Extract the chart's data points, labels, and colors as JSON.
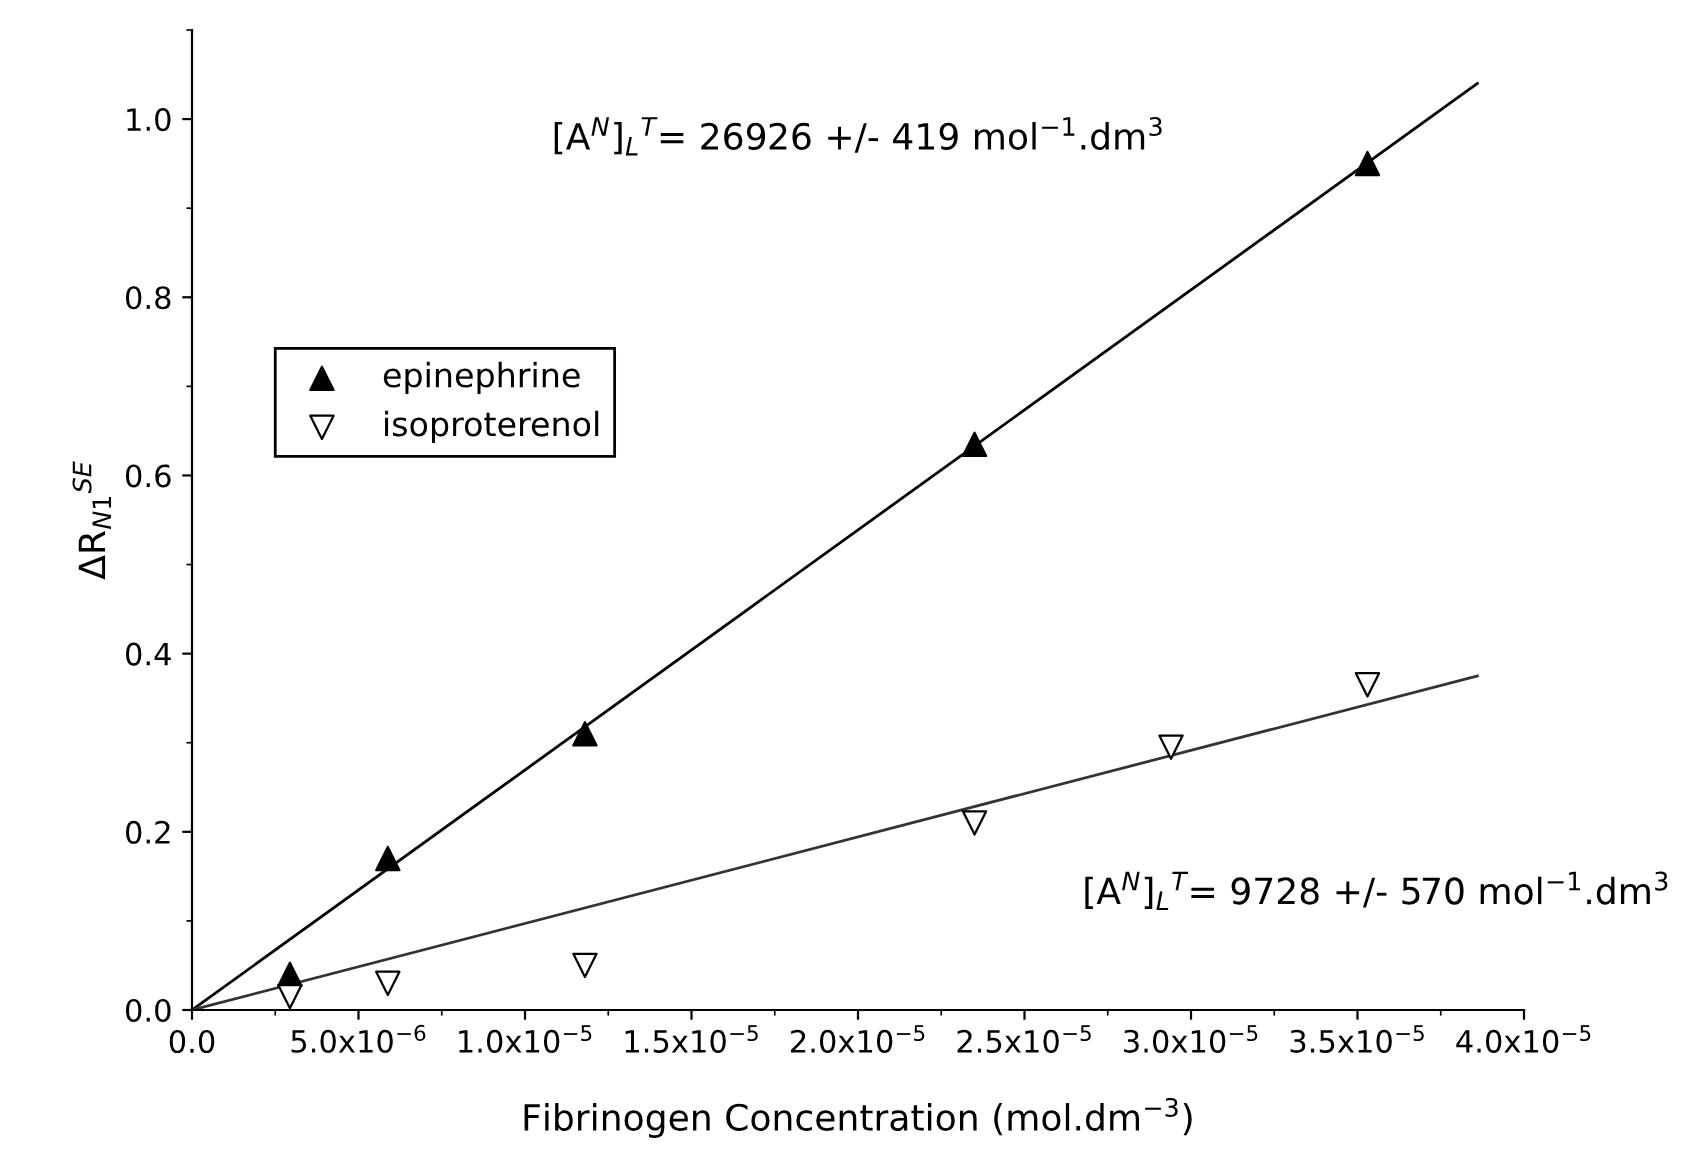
{
  "chart_data": {
    "type": "scatter",
    "xlabel": "Fibrinogen Concentration (mol.dm$^{−3}$)",
    "ylabel": "ΔR$_{N1}$$^{SE}$",
    "series": [
      {
        "name": "epinephrine",
        "marker": "triangle",
        "color": "#000000",
        "x": [
          2.94e-06,
          5.88e-06,
          1.18e-05,
          2.35e-05,
          3.53e-05
        ],
        "values": [
          0.04,
          0.17,
          0.31,
          0.635,
          0.95
        ]
      },
      {
        "name": "isoproterenol",
        "marker": "triangle_down",
        "color": "#ffffff",
        "x": [
          2.94e-06,
          5.88e-06,
          1.18e-05,
          2.35e-05,
          2.94e-05,
          3.53e-05
        ],
        "values": [
          0.015,
          0.03,
          0.05,
          0.21,
          0.295,
          0.365
        ]
      },
      {
        "type": "line",
        "color": "#000000",
        "x": [
          0,
          3.86e-05
        ],
        "values": [
          0,
          1.04
        ]
      },
      {
        "type": "line",
        "color": "#333333",
        "x": [
          0,
          3.86e-05
        ],
        "values": [
          0,
          0.375
        ]
      }
    ],
    "annotations": [
      "[A$^{N}$]$_{L}$$^{T}$= 26926 +/- 419 mol$^{−1}$.dm$^{3}$",
      "[A$^{N}$]$_{L}$$^{T}$= 9728 +/- 570 mol$^{−1}$.dm$^{3}$"
    ],
    "xlim": [
      0,
      4e-05
    ],
    "ylim": [
      0,
      1.1
    ],
    "xticks": [
      {
        "value": 0,
        "label": "0.0"
      },
      {
        "value": 5e-06,
        "label": "5.0x10$^{−6}$"
      },
      {
        "value": 1e-05,
        "label": "1.0x10$^{−5}$"
      },
      {
        "value": 1.5e-05,
        "label": "1.5x10$^{−5}$"
      },
      {
        "value": 2e-05,
        "label": "2.0x10$^{−5}$"
      },
      {
        "value": 2.5e-05,
        "label": "2.5x10$^{−5}$"
      },
      {
        "value": 3e-05,
        "label": "3.0x10$^{−5}$"
      },
      {
        "value": 3.5e-05,
        "label": "3.5x10$^{−5}$"
      },
      {
        "value": 4e-05,
        "label": "4.0x10$^{−5}$"
      }
    ],
    "yticks": [
      {
        "value": 0,
        "label": "0.0"
      },
      {
        "value": 0.2,
        "label": "0.2"
      },
      {
        "value": 0.4,
        "label": "0.4"
      },
      {
        "value": 0.6,
        "label": "0.6"
      },
      {
        "value": 0.8,
        "label": "0.8"
      },
      {
        "value": 1.0,
        "label": "1.0"
      }
    ],
    "grid": false,
    "legend": "left"
  }
}
